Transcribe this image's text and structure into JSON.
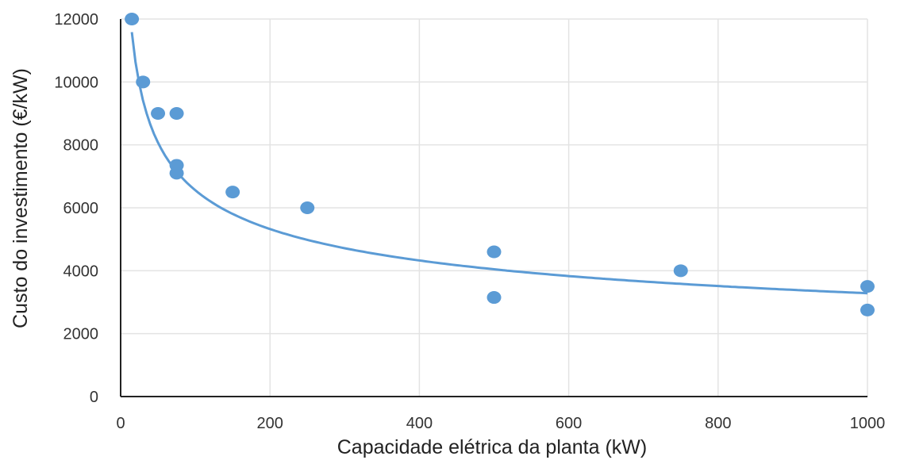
{
  "chart_data": {
    "type": "scatter",
    "title": "",
    "xlabel": "Capacidade elétrica da planta (kW)",
    "ylabel": "Custo do investimento (€/kW)",
    "xlim": [
      0,
      1000
    ],
    "ylim": [
      0,
      12000
    ],
    "x_ticks": [
      "0",
      "200",
      "400",
      "600",
      "800",
      "1000"
    ],
    "y_ticks": [
      "0",
      "2000",
      "4000",
      "6000",
      "8000",
      "10000",
      "12000"
    ],
    "grid": "vertical and horizontal",
    "marker_color": "#5b9bd5",
    "trend_color": "#5b9bd5",
    "points": [
      {
        "x": 15,
        "y": 12000
      },
      {
        "x": 30,
        "y": 10000
      },
      {
        "x": 50,
        "y": 9000
      },
      {
        "x": 75,
        "y": 9000
      },
      {
        "x": 75,
        "y": 7350
      },
      {
        "x": 75,
        "y": 7100
      },
      {
        "x": 150,
        "y": 6500
      },
      {
        "x": 250,
        "y": 6000
      },
      {
        "x": 500,
        "y": 4600
      },
      {
        "x": 500,
        "y": 3150
      },
      {
        "x": 750,
        "y": 4000
      },
      {
        "x": 1000,
        "y": 3500
      },
      {
        "x": 1000,
        "y": 2750
      }
    ],
    "trendline": {
      "type": "power",
      "coefficient": 26100,
      "exponent": -0.3,
      "x_range": [
        15,
        1000
      ]
    }
  }
}
